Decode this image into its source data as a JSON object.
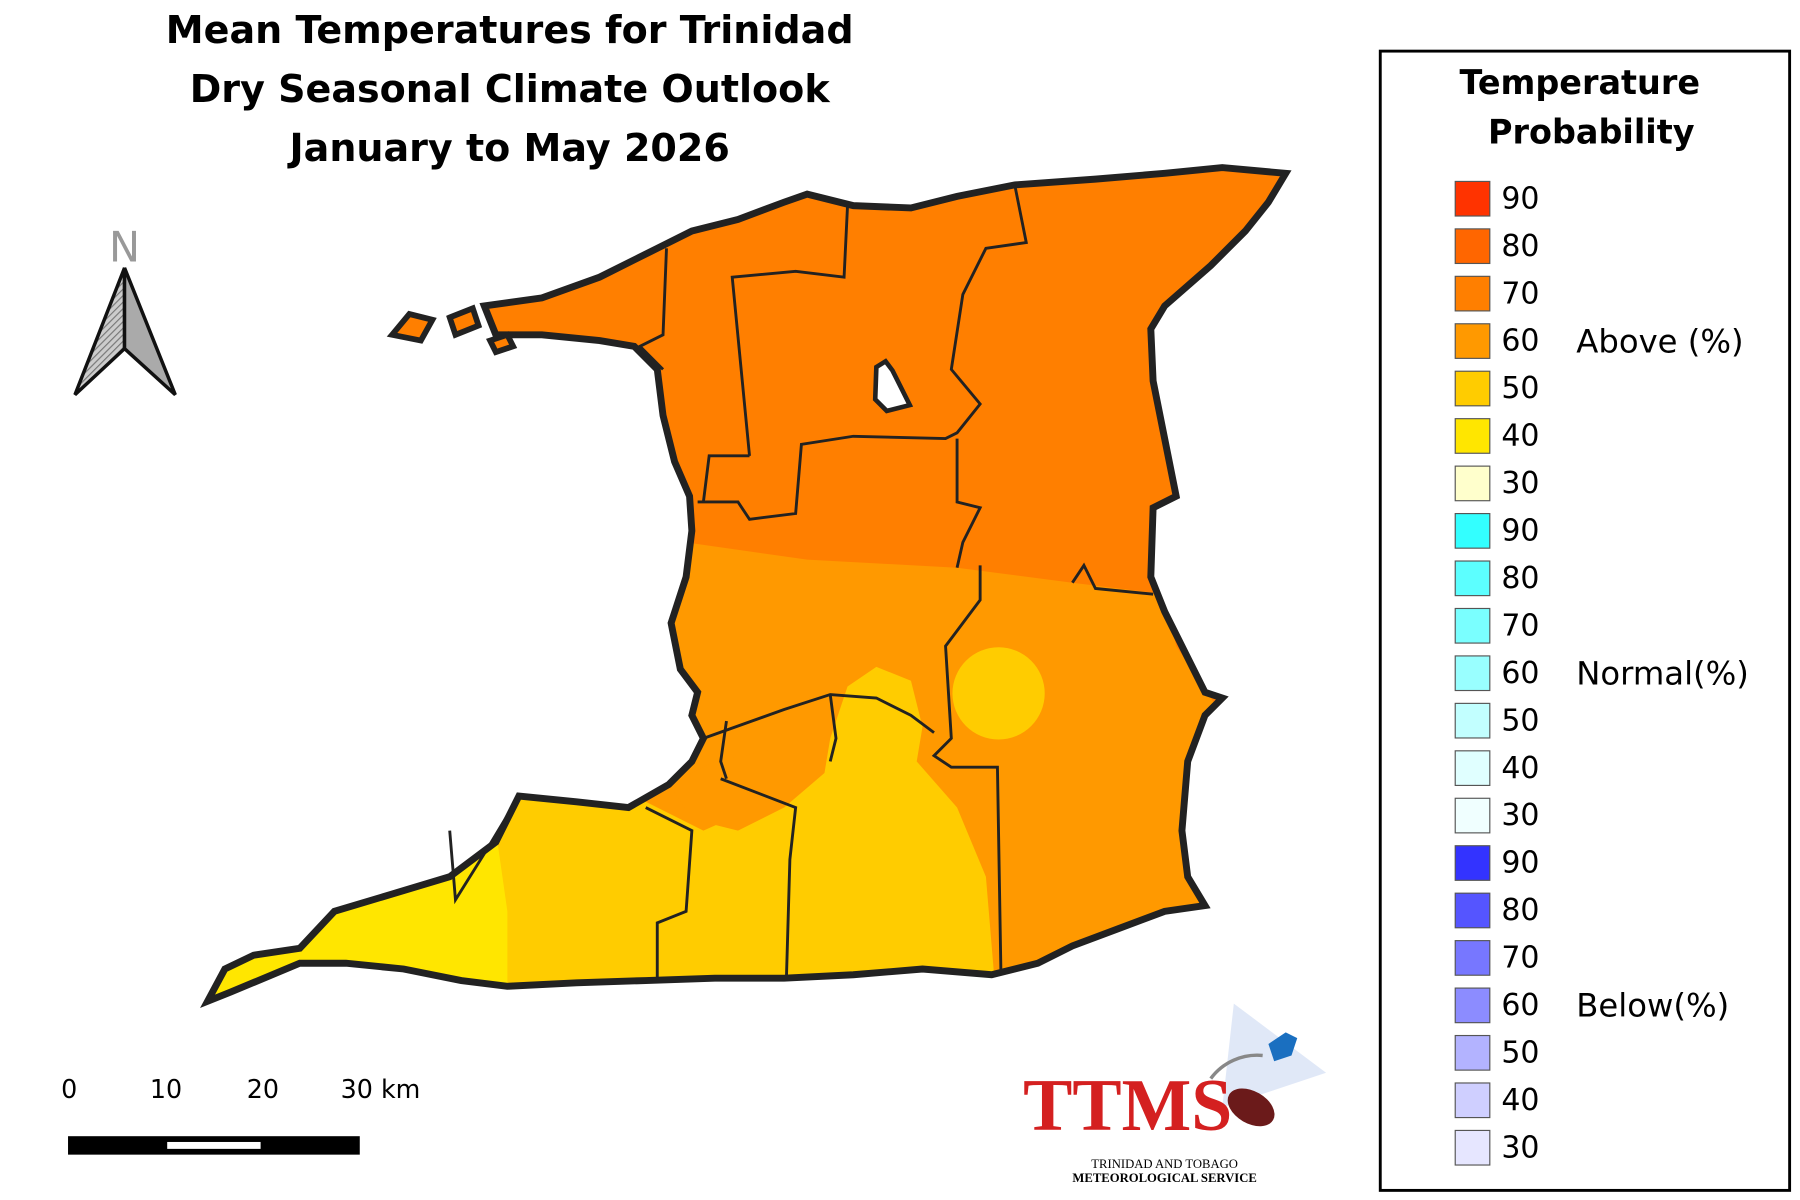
{
  "title": [
    "Mean Temperatures for Trinidad",
    "Dry Seasonal Climate Outlook",
    "January to May 2026"
  ],
  "north_arrow": "N",
  "scale_bar": [
    "0",
    "10",
    "20",
    "30 km"
  ],
  "logo": {
    "name": "TTMS",
    "line1": "TRINIDAD AND TOBAGO",
    "line2": "METEOROLOGICAL SERVICE"
  },
  "legend": {
    "title": [
      "Temperature",
      "Probability"
    ],
    "groups": [
      {
        "label": "Above (%)",
        "items": [
          {
            "value": 90,
            "color": "#ff3300"
          },
          {
            "value": 80,
            "color": "#ff6600"
          },
          {
            "value": 70,
            "color": "#ff7f00"
          },
          {
            "value": 60,
            "color": "#ff9900"
          },
          {
            "value": 50,
            "color": "#ffcc00"
          },
          {
            "value": 40,
            "color": "#ffe600"
          },
          {
            "value": 30,
            "color": "#ffffcc"
          }
        ]
      },
      {
        "label": "Normal(%)",
        "items": [
          {
            "value": 90,
            "color": "#33ffff"
          },
          {
            "value": 80,
            "color": "#5cffff"
          },
          {
            "value": 70,
            "color": "#7affff"
          },
          {
            "value": 60,
            "color": "#99ffff"
          },
          {
            "value": 50,
            "color": "#c2ffff"
          },
          {
            "value": 40,
            "color": "#e0ffff"
          },
          {
            "value": 30,
            "color": "#f0ffff"
          }
        ]
      },
      {
        "label": "Below(%)",
        "items": [
          {
            "value": 90,
            "color": "#3333ff"
          },
          {
            "value": 80,
            "color": "#5555ff"
          },
          {
            "value": 70,
            "color": "#7777ff"
          },
          {
            "value": 60,
            "color": "#8c8cff"
          },
          {
            "value": 50,
            "color": "#b3b3ff"
          },
          {
            "value": 40,
            "color": "#cfcfff"
          },
          {
            "value": 30,
            "color": "#e6e6ff"
          }
        ]
      }
    ]
  }
}
